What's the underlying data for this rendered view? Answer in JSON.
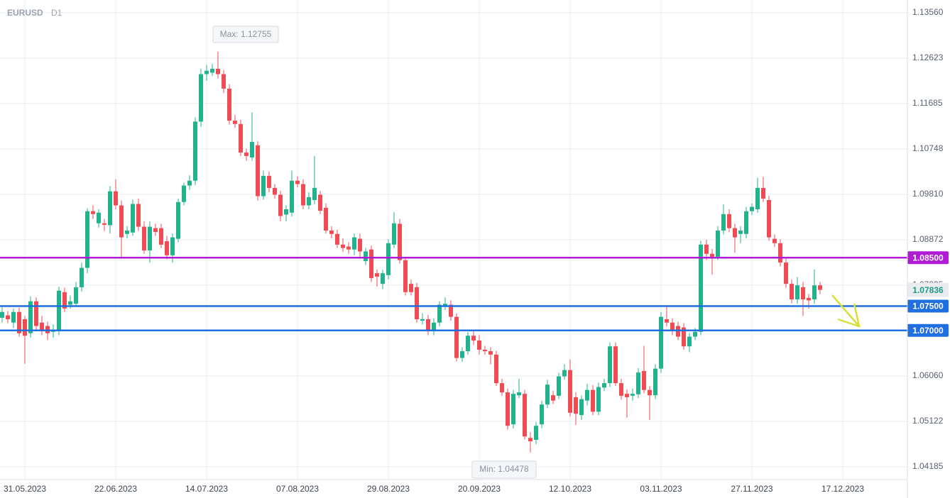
{
  "chart_data": {
    "type": "candlestick",
    "title": "EURUSD",
    "timeframe": "D1",
    "up_color": "#22b38e",
    "down_color": "#ef4b52",
    "grid": true,
    "ylim": [
      1.0392,
      1.1382
    ],
    "yticks": [
      {
        "value": 1.1356,
        "label": "1.13560"
      },
      {
        "value": 1.12623,
        "label": "1.12623"
      },
      {
        "value": 1.11685,
        "label": "1.11685"
      },
      {
        "value": 1.10748,
        "label": "1.10748"
      },
      {
        "value": 1.0981,
        "label": "1.09810"
      },
      {
        "value": 1.08872,
        "label": "1.08872"
      },
      {
        "value": 1.07935,
        "label": "1.07935"
      },
      {
        "value": 1.0606,
        "label": "1.06060"
      },
      {
        "value": 1.05122,
        "label": "1.05122"
      },
      {
        "value": 1.04185,
        "label": "1.04185"
      }
    ],
    "levels": [
      {
        "value": 1.085,
        "label": "1.08500",
        "color": "#b11bd6"
      },
      {
        "value": 1.075,
        "label": "1.07500",
        "color": "#1f6fe0"
      },
      {
        "value": 1.07,
        "label": "1.07000",
        "color": "#1f6fe0"
      }
    ],
    "annotations": [
      "Max: 1.12755",
      "Min: 1.04478"
    ],
    "categories": [
      null,
      null,
      null,
      null,
      "31.05.2023",
      null,
      null,
      null,
      null,
      null,
      null,
      null,
      null,
      null,
      null,
      null,
      null,
      null,
      null,
      null,
      "22.06.2023",
      null,
      null,
      null,
      null,
      null,
      null,
      null,
      null,
      null,
      null,
      null,
      null,
      null,
      null,
      null,
      "14.07.2023",
      null,
      null,
      null,
      null,
      null,
      null,
      null,
      null,
      null,
      null,
      null,
      null,
      null,
      null,
      null,
      "07.08.2023",
      null,
      null,
      null,
      null,
      null,
      null,
      null,
      null,
      null,
      null,
      null,
      null,
      null,
      null,
      null,
      "29.08.2023",
      null,
      null,
      null,
      null,
      null,
      null,
      null,
      null,
      null,
      null,
      null,
      null,
      null,
      null,
      null,
      "20.09.2023",
      null,
      null,
      null,
      null,
      null,
      null,
      null,
      null,
      null,
      null,
      null,
      null,
      null,
      null,
      null,
      "12.10.2023",
      null,
      null,
      null,
      null,
      null,
      null,
      null,
      null,
      null,
      null,
      null,
      null,
      null,
      null,
      null,
      "03.11.2023",
      null,
      null,
      null,
      null,
      null,
      null,
      null,
      null,
      null,
      null,
      null,
      null,
      null,
      null,
      null,
      "27.11.2023",
      null,
      null,
      null,
      null,
      null,
      null,
      null,
      null,
      null,
      null,
      null,
      null,
      null,
      null,
      null,
      "17.12.2023"
    ],
    "ohlc": [
      [
        1.0726,
        1.0748,
        1.0716,
        1.0738
      ],
      [
        1.0731,
        1.074,
        1.0715,
        1.0723
      ],
      [
        1.0716,
        1.0745,
        1.0705,
        1.0738
      ],
      [
        1.0738,
        1.0747,
        1.0687,
        1.0694
      ],
      [
        1.0723,
        1.073,
        1.0631,
        1.0689
      ],
      [
        1.0694,
        1.077,
        1.0685,
        1.076
      ],
      [
        1.076,
        1.0768,
        1.07,
        1.0709
      ],
      [
        1.0716,
        1.073,
        1.069,
        1.0701
      ],
      [
        1.0709,
        1.0718,
        1.068,
        1.0694
      ],
      [
        1.0697,
        1.0712,
        1.0685,
        1.0701
      ],
      [
        1.0698,
        1.079,
        1.069,
        1.0782
      ],
      [
        1.0779,
        1.0788,
        1.0738,
        1.0745
      ],
      [
        1.0753,
        1.0772,
        1.0745,
        1.076
      ],
      [
        1.0755,
        1.08,
        1.0748,
        1.0789
      ],
      [
        1.0789,
        1.084,
        1.078,
        1.0829
      ],
      [
        1.0829,
        1.0952,
        1.0818,
        1.0946
      ],
      [
        1.0946,
        1.0958,
        1.093,
        1.094
      ],
      [
        1.0921,
        1.095,
        1.0912,
        1.0943
      ],
      [
        1.0921,
        1.093,
        1.0905,
        1.0918
      ],
      [
        1.0917,
        1.0998,
        1.09,
        1.0987
      ],
      [
        1.0987,
        1.1012,
        1.095,
        1.0958
      ],
      [
        1.0958,
        1.0968,
        1.085,
        1.0892
      ],
      [
        1.0899,
        1.0915,
        1.089,
        1.0906
      ],
      [
        1.0902,
        1.097,
        1.0895,
        1.0961
      ],
      [
        1.0961,
        1.0972,
        1.0905,
        1.0914
      ],
      [
        1.0914,
        1.0925,
        1.0858,
        1.0865
      ],
      [
        1.0865,
        1.0925,
        1.084,
        1.0914
      ],
      [
        1.0911,
        1.092,
        1.0895,
        1.0903
      ],
      [
        1.0911,
        1.092,
        1.087,
        1.0877
      ],
      [
        1.0884,
        1.0895,
        1.0847,
        1.0855
      ],
      [
        1.0855,
        1.09,
        1.084,
        1.0892
      ],
      [
        1.0889,
        1.0972,
        1.0882,
        1.0965
      ],
      [
        1.0965,
        1.1005,
        1.0958,
        1.0999
      ],
      [
        1.0999,
        1.102,
        1.099,
        1.1009
      ],
      [
        1.1009,
        1.114,
        1.1,
        1.1131
      ],
      [
        1.1131,
        1.124,
        1.112,
        1.1229
      ],
      [
        1.1229,
        1.1248,
        1.1215,
        1.1236
      ],
      [
        1.1232,
        1.125,
        1.1225,
        1.124
      ],
      [
        1.124,
        1.12755,
        1.122,
        1.1229
      ],
      [
        1.1229,
        1.1238,
        1.119,
        1.1199
      ],
      [
        1.1199,
        1.1208,
        1.1125,
        1.1133
      ],
      [
        1.1133,
        1.1145,
        1.1118,
        1.1126
      ],
      [
        1.1126,
        1.1135,
        1.106,
        1.1067
      ],
      [
        1.1067,
        1.1075,
        1.105,
        1.106
      ],
      [
        1.1057,
        1.115,
        1.105,
        1.1089
      ],
      [
        1.1082,
        1.109,
        1.0968,
        1.0977
      ],
      [
        1.0977,
        1.103,
        1.097,
        1.1019
      ],
      [
        1.1019,
        1.1028,
        1.0985,
        1.0994
      ],
      [
        1.0994,
        1.1002,
        1.0972,
        1.098
      ],
      [
        1.098,
        1.0988,
        1.0925,
        1.0936
      ],
      [
        1.0939,
        1.0958,
        1.0925,
        1.095
      ],
      [
        1.0943,
        1.103,
        1.0935,
        1.1009
      ],
      [
        1.1009,
        1.1018,
        1.0995,
        1.1002
      ],
      [
        1.1002,
        1.1012,
        1.095,
        1.0958
      ],
      [
        1.0958,
        1.0985,
        1.095,
        1.0975
      ],
      [
        1.0969,
        1.106,
        1.096,
        1.0994
      ],
      [
        1.098,
        1.0988,
        1.094,
        1.0947
      ],
      [
        1.0953,
        1.0962,
        1.09,
        1.0906
      ],
      [
        1.0906,
        1.0915,
        1.089,
        1.0899
      ],
      [
        1.0899,
        1.0908,
        1.087,
        1.0877
      ],
      [
        1.0877,
        1.089,
        1.0862,
        1.087
      ],
      [
        1.0873,
        1.0882,
        1.0858,
        1.0867
      ],
      [
        1.0867,
        1.09,
        1.0855,
        1.0892
      ],
      [
        1.0889,
        1.09,
        1.085,
        1.0863
      ],
      [
        1.0843,
        1.087,
        1.0835,
        1.0863
      ],
      [
        1.0867,
        1.0875,
        1.08,
        1.0808
      ],
      [
        1.0818,
        1.0826,
        1.079,
        1.0811
      ],
      [
        1.0796,
        1.0825,
        1.0785,
        1.0818
      ],
      [
        1.0814,
        1.0888,
        1.0805,
        1.088
      ],
      [
        1.0877,
        1.0944,
        1.087,
        1.0921
      ],
      [
        1.092,
        1.093,
        1.0838,
        1.0845
      ],
      [
        1.0845,
        1.0852,
        1.0772,
        1.0779
      ],
      [
        1.0796,
        1.0805,
        1.0772,
        1.0779
      ],
      [
        1.0789,
        1.0798,
        1.0716,
        1.0723
      ],
      [
        1.072,
        1.0735,
        1.0712,
        1.0723
      ],
      [
        1.0723,
        1.0732,
        1.069,
        1.0698
      ],
      [
        1.0698,
        1.0725,
        1.069,
        1.0716
      ],
      [
        1.0716,
        1.076,
        1.0708,
        1.0753
      ],
      [
        1.075,
        1.0768,
        1.0742,
        1.0755
      ],
      [
        1.0753,
        1.0762,
        1.072,
        1.0728
      ],
      [
        1.0728,
        1.0735,
        1.0636,
        1.0643
      ],
      [
        1.0643,
        1.0665,
        1.0635,
        1.0657
      ],
      [
        1.0657,
        1.0697,
        1.065,
        1.0689
      ],
      [
        1.0689,
        1.07,
        1.067,
        1.0679
      ],
      [
        1.0679,
        1.069,
        1.065,
        1.066
      ],
      [
        1.066,
        1.0668,
        1.065,
        1.0657
      ],
      [
        1.0657,
        1.0665,
        1.063,
        1.065
      ],
      [
        1.065,
        1.0658,
        1.0585,
        1.0591
      ],
      [
        1.0591,
        1.06,
        1.0565,
        1.0572
      ],
      [
        1.0572,
        1.058,
        1.0495,
        1.0503
      ],
      [
        1.0506,
        1.0577,
        1.0497,
        1.0569
      ],
      [
        1.0566,
        1.06,
        1.056,
        1.0572
      ],
      [
        1.0569,
        1.0577,
        1.0475,
        1.0481
      ],
      [
        1.0478,
        1.049,
        1.04478,
        1.0471
      ],
      [
        1.0474,
        1.0511,
        1.0465,
        1.0503
      ],
      [
        1.0506,
        1.0555,
        1.0498,
        1.0547
      ],
      [
        1.0547,
        1.0598,
        1.054,
        1.0588
      ],
      [
        1.0566,
        1.0575,
        1.0548,
        1.0555
      ],
      [
        1.0565,
        1.0612,
        1.0558,
        1.0605
      ],
      [
        1.0605,
        1.063,
        1.0598,
        1.0618
      ],
      [
        1.0618,
        1.064,
        1.0522,
        1.053
      ],
      [
        1.0562,
        1.0572,
        1.0505,
        1.0528
      ],
      [
        1.0525,
        1.0566,
        1.0515,
        1.0558
      ],
      [
        1.0555,
        1.059,
        1.0545,
        1.0577
      ],
      [
        1.0577,
        1.0587,
        1.0525,
        1.0532
      ],
      [
        1.0532,
        1.0592,
        1.0525,
        1.0583
      ],
      [
        1.0582,
        1.06,
        1.0575,
        1.0591
      ],
      [
        1.0591,
        1.0675,
        1.0583,
        1.0667
      ],
      [
        1.0667,
        1.0675,
        1.0585,
        1.0591
      ],
      [
        1.0591,
        1.06,
        1.0557,
        1.0565
      ],
      [
        1.0569,
        1.0578,
        1.052,
        1.0562
      ],
      [
        1.0565,
        1.058,
        1.0555,
        1.0569
      ],
      [
        1.0568,
        1.0622,
        1.056,
        1.0613
      ],
      [
        1.0616,
        1.0668,
        1.057,
        1.0577
      ],
      [
        1.0577,
        1.0585,
        1.0515,
        1.0566
      ],
      [
        1.0566,
        1.063,
        1.0558,
        1.0621
      ],
      [
        1.0621,
        1.0738,
        1.0612,
        1.0728
      ],
      [
        1.0723,
        1.075,
        1.0708,
        1.0716
      ],
      [
        1.0716,
        1.0725,
        1.069,
        1.0701
      ],
      [
        1.0709,
        1.0718,
        1.068,
        1.0687
      ],
      [
        1.0706,
        1.0715,
        1.066,
        1.0667
      ],
      [
        1.0667,
        1.0695,
        1.0655,
        1.0687
      ],
      [
        1.0687,
        1.0705,
        1.068,
        1.0697
      ],
      [
        1.0697,
        1.0885,
        1.069,
        1.0877
      ],
      [
        1.0877,
        1.0887,
        1.0845,
        1.0858
      ],
      [
        1.0858,
        1.0868,
        1.0815,
        1.0852
      ],
      [
        1.0852,
        1.0915,
        1.0845,
        1.0906
      ],
      [
        1.0906,
        1.096,
        1.0898,
        1.094
      ],
      [
        1.094,
        1.095,
        1.0903,
        1.0911
      ],
      [
        1.0911,
        1.092,
        1.086,
        1.0892
      ],
      [
        1.0899,
        1.0915,
        1.088,
        1.0906
      ],
      [
        1.0899,
        1.0955,
        1.089,
        1.0946
      ],
      [
        1.0946,
        1.0962,
        1.0938,
        1.0955
      ],
      [
        1.095,
        1.1015,
        1.0943,
        1.0994
      ],
      [
        1.0994,
        1.1017,
        1.0965,
        1.0972
      ],
      [
        1.0969,
        1.0978,
        1.0885,
        1.0892
      ],
      [
        1.0889,
        1.0898,
        1.0872,
        1.088
      ],
      [
        1.088,
        1.0888,
        1.0832,
        1.084
      ],
      [
        1.084,
        1.0848,
        1.0788,
        1.0796
      ],
      [
        1.0796,
        1.0805,
        1.0756,
        1.0764
      ],
      [
        1.0764,
        1.081,
        1.0755,
        1.0793
      ],
      [
        1.0789,
        1.08,
        1.073,
        1.0764
      ],
      [
        1.0767,
        1.0775,
        1.0745,
        1.0762
      ],
      [
        1.0764,
        1.0826,
        1.0755,
        1.0793
      ],
      [
        1.0793,
        1.08,
        1.0775,
        1.07836
      ],
      null,
      null,
      null,
      null
    ]
  }
}
